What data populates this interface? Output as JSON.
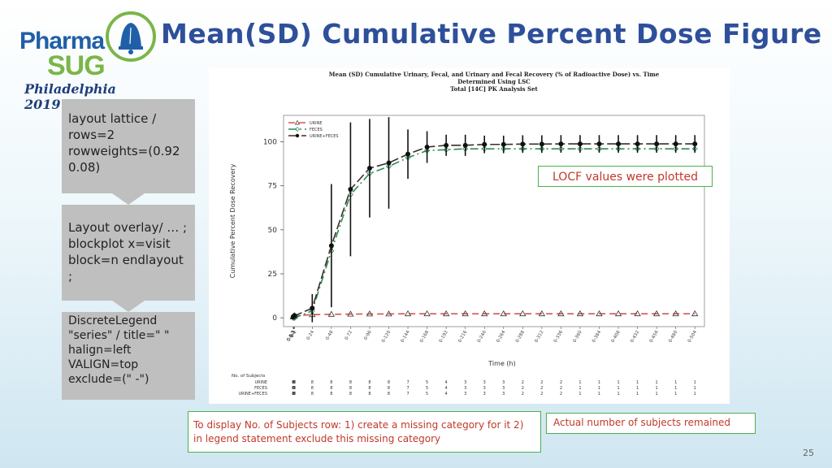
{
  "slide": {
    "title": "Mean(SD) Cumulative Percent Dose Figure",
    "page_number": "25",
    "logo": {
      "line1": "Pharma",
      "line2": "SUG",
      "line3": "Philadelphia 2019"
    },
    "notes": [
      "layout lattice / rows=2 rowweights=(0.92  0.08)",
      "Layout overlay/ … ; blockplot x=visit block=n endlayout ;",
      "DiscreteLegend \"series\" / title=\" \" halign=left VALIGN=top exclude=(\" -\")"
    ],
    "locf_label": "LOCF values were plotted",
    "callout_left": "To display  No. of Subjects row: 1) create a missing category for it 2) in legend statement exclude this missing category",
    "callout_right": "Actual number of subjects remained"
  },
  "chart_data": {
    "type": "line",
    "title": "Mean (SD) Cumulative Urinary, Fecal, and Urinary and Fecal Recovery (% of Radioactive Dose) vs. Time\nDetermined Using LSC\nTotal [14C] PK Analysis Set",
    "xlabel": "Time (h)",
    "ylabel": "Cumulative Percent Dose Recovery",
    "ylim": [
      -5,
      115
    ],
    "yticks": [
      0,
      25,
      50,
      75,
      100
    ],
    "legend_position": "top-left",
    "x_categories": [
      "0-0.5",
      "0.5-1",
      "0-1",
      "0-2",
      "0-24",
      "0-48",
      "0-72",
      "0-96",
      "0-120",
      "0-144",
      "0-168",
      "0-192",
      "0-216",
      "0-240",
      "0-264",
      "0-288",
      "0-312",
      "0-336",
      "0-360",
      "0-384",
      "0-408",
      "0-432",
      "0-456",
      "0-480",
      "0-504"
    ],
    "x_positions": [
      0,
      0.5,
      1,
      2,
      24,
      48,
      72,
      96,
      120,
      144,
      168,
      192,
      216,
      240,
      264,
      288,
      312,
      336,
      360,
      384,
      408,
      432,
      456,
      480,
      504
    ],
    "series": [
      {
        "name": "URINE",
        "color": "#d9534f",
        "dash": "8,5",
        "marker": "triangle",
        "values": [
          0.5,
          0.8,
          1.0,
          1.2,
          1.8,
          2.0,
          2.1,
          2.2,
          2.2,
          2.3,
          2.3,
          2.3,
          2.3,
          2.3,
          2.3,
          2.3,
          2.3,
          2.3,
          2.3,
          2.3,
          2.3,
          2.3,
          2.3,
          2.3,
          2.3
        ]
      },
      {
        "name": "FECES",
        "color": "#2e8b57",
        "dash": "10,4,2,4",
        "marker": "diamond",
        "values": [
          0,
          0,
          0,
          0,
          4,
          38,
          70,
          82,
          86,
          91,
          95,
          95.5,
          96,
          96,
          96,
          96,
          96,
          96,
          96,
          96,
          96,
          96,
          96,
          96,
          96
        ]
      },
      {
        "name": "URINE+FECES",
        "color": "#3b2e24",
        "dash": "12,4",
        "marker": "circle",
        "values": [
          0.5,
          0.8,
          1.0,
          1.2,
          5.5,
          41,
          73,
          85,
          88,
          93,
          97,
          98,
          98,
          98.5,
          98.5,
          98.7,
          98.7,
          98.8,
          98.8,
          98.8,
          98.8,
          98.8,
          98.8,
          98.8,
          98.8
        ],
        "sd": [
          0,
          0,
          0,
          0,
          8,
          35,
          38,
          28,
          26,
          14,
          9,
          6,
          6,
          5,
          5,
          5,
          5,
          5,
          5,
          5,
          5,
          5,
          5,
          5,
          5
        ]
      }
    ],
    "subjects_table": {
      "header": "No. of Subjects",
      "rows": [
        {
          "name": "URINE",
          "counts": [
            8,
            8,
            8,
            8,
            8,
            8,
            8,
            8,
            8,
            7,
            5,
            4,
            3,
            3,
            3,
            2,
            2,
            2,
            1,
            1,
            1,
            1,
            1,
            1,
            1
          ]
        },
        {
          "name": "FECES",
          "counts": [
            0,
            0,
            0,
            8,
            8,
            8,
            8,
            8,
            8,
            7,
            5,
            4,
            3,
            3,
            3,
            2,
            2,
            2,
            1,
            1,
            1,
            1,
            1,
            1,
            1
          ]
        },
        {
          "name": "URINE+FECES",
          "counts": [
            8,
            8,
            8,
            8,
            8,
            8,
            8,
            8,
            8,
            7,
            5,
            4,
            3,
            3,
            3,
            2,
            2,
            2,
            1,
            1,
            1,
            1,
            1,
            1,
            1
          ]
        }
      ]
    }
  }
}
